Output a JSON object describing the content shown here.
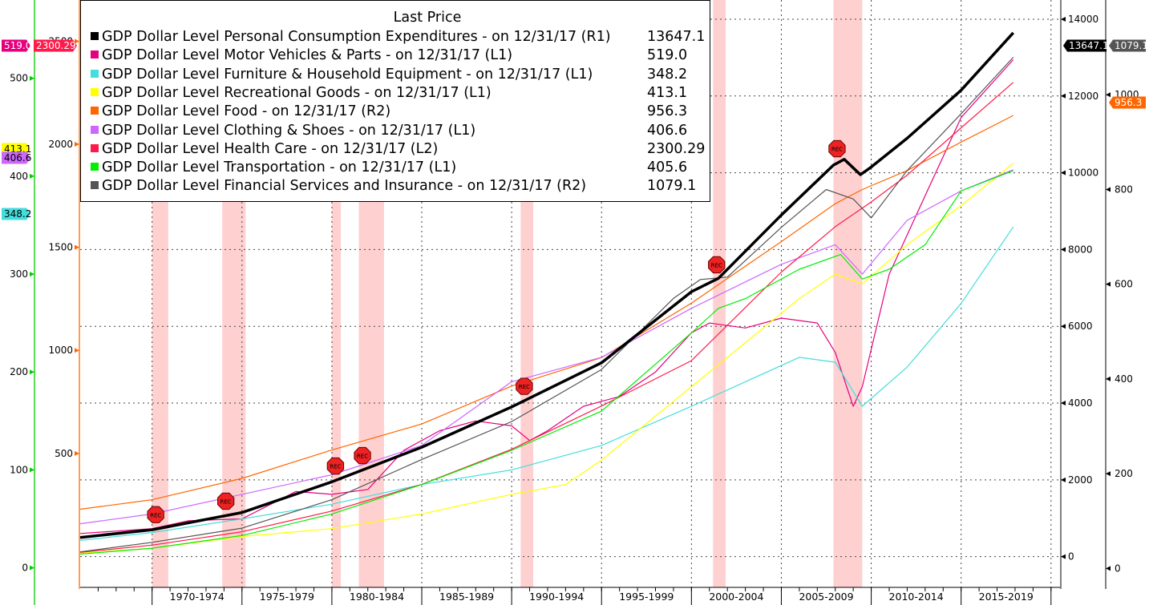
{
  "chart_data": {
    "type": "line",
    "legend_title": "Last Price",
    "legend_position": "top-left",
    "x_range": [
      1966.0,
      2020.5
    ],
    "x_tick_labels": [
      "1970-1974",
      "1975-1979",
      "1980-1984",
      "1985-1989",
      "1990-1994",
      "1995-1999",
      "2000-2004",
      "2005-2009",
      "2010-2014",
      "2015-2019"
    ],
    "axes": {
      "L1": {
        "range": [
          -20,
          580
        ],
        "ticks": [
          0,
          100,
          200,
          300,
          400,
          500
        ],
        "tick_labels": [
          "0",
          "100",
          "200",
          "300",
          "400",
          "500"
        ],
        "color": "#00cc00",
        "side": "left-outer"
      },
      "L2": {
        "range": [
          -150,
          2700
        ],
        "ticks": [
          500,
          1000,
          1500,
          2000,
          2500
        ],
        "tick_labels": [
          "500",
          "1000",
          "1500",
          "2000",
          "2500"
        ],
        "color": "#ff6600",
        "side": "left-inner"
      },
      "R1": {
        "range": [
          -800,
          14500
        ],
        "ticks": [
          0,
          2000,
          4000,
          6000,
          8000,
          10000,
          12000,
          14000
        ],
        "tick_labels": [
          "0",
          "2000",
          "4000",
          "6000",
          "8000",
          "10000",
          "12000",
          "14000"
        ],
        "side": "right-inner"
      },
      "R2": {
        "range": [
          -40,
          1200
        ],
        "ticks": [
          0,
          200,
          400,
          600,
          800,
          1000
        ],
        "tick_labels": [
          "0",
          "200",
          "400",
          "600",
          "800",
          "1000"
        ],
        "side": "right-outer"
      }
    },
    "recessions": [
      {
        "start": 1970.0,
        "end": 1970.9,
        "label": "REC"
      },
      {
        "start": 1973.9,
        "end": 1975.2,
        "label": "REC"
      },
      {
        "start": 1980.0,
        "end": 1980.5,
        "label": "REC"
      },
      {
        "start": 1981.5,
        "end": 1982.9,
        "label": "REC"
      },
      {
        "start": 1990.5,
        "end": 1991.2,
        "label": "REC"
      },
      {
        "start": 2001.2,
        "end": 2001.9,
        "label": "REC"
      },
      {
        "start": 2007.9,
        "end": 2009.5,
        "label": "REC"
      }
    ],
    "last_price_tags": [
      {
        "text": "519.0",
        "axis": "L1",
        "value": 519.0,
        "color": "#e6007e"
      },
      {
        "text": "2300.29",
        "axis": "L2",
        "value": 2300.29,
        "color": "#ff1a4a"
      },
      {
        "text": "413.1",
        "axis": "L1",
        "value": 413.1,
        "color": "#ffff00"
      },
      {
        "text": "406.6",
        "axis": "L1",
        "value": 406.6,
        "color": "#cc66ff"
      },
      {
        "text": "348.2",
        "axis": "L1",
        "value": 348.2,
        "color": "#44dddd"
      },
      {
        "text": "13647.1",
        "axis": "R1",
        "value": 13647.1,
        "color": "#000000"
      },
      {
        "text": "1079.1",
        "axis": "R2",
        "value": 1079.1,
        "color": "#555555"
      },
      {
        "text": "956.3",
        "axis": "R2",
        "value": 956.3,
        "color": "#ff6600"
      }
    ],
    "series": [
      {
        "name": "GDP Dollar Level Personal Consumption Expenditures -  on 12/31/17  (R1)",
        "last": "13647.1",
        "axis": "R1",
        "color": "#000000",
        "width": 3.5,
        "x": [
          1966,
          1970,
          1975,
          1980,
          1985,
          1990,
          1995,
          2000,
          2001.5,
          2005,
          2007.9,
          2008.5,
          2009.4,
          2010,
          2012,
          2015,
          2017.9
        ],
        "values": [
          500,
          700,
          1150,
          1950,
          2850,
          3900,
          5050,
          6900,
          7250,
          8900,
          10200,
          10350,
          9950,
          10150,
          10900,
          12150,
          13647.1
        ]
      },
      {
        "name": "GDP Dollar Level Motor Vehicles & Parts -  on 12/31/17  (L1)",
        "last": "519.0",
        "axis": "L1",
        "color": "#e6007e",
        "width": 1.2,
        "x": [
          1966,
          1970,
          1972,
          1975,
          1978,
          1980,
          1982,
          1984,
          1986,
          1988,
          1990,
          1991,
          1992,
          1994,
          1996,
          1998,
          2000,
          2001,
          2003,
          2005,
          2007,
          2008,
          2009,
          2009.5,
          2011,
          2013,
          2015,
          2017.9
        ],
        "values": [
          35,
          40,
          48,
          50,
          78,
          75,
          80,
          120,
          140,
          150,
          145,
          130,
          140,
          165,
          175,
          200,
          240,
          250,
          245,
          255,
          250,
          220,
          165,
          185,
          300,
          380,
          460,
          519.0
        ]
      },
      {
        "name": "GDP Dollar Level Furniture & Household Equipment -  on 12/31/17  (L1)",
        "last": "348.2",
        "axis": "L1",
        "color": "#44dddd",
        "width": 1.2,
        "x": [
          1966,
          1970,
          1975,
          1980,
          1985,
          1990,
          1995,
          2000,
          2003,
          2006,
          2008,
          2009.5,
          2012,
          2015,
          2017.9
        ],
        "values": [
          28,
          36,
          50,
          65,
          85,
          100,
          125,
          165,
          190,
          215,
          210,
          165,
          205,
          270,
          348.2
        ]
      },
      {
        "name": "GDP Dollar Level Recreational Goods -  on 12/31/17  (L1)",
        "last": "413.1",
        "axis": "L1",
        "color": "#ffff00",
        "width": 1.2,
        "x": [
          1966,
          1970,
          1975,
          1980,
          1985,
          1990,
          1993,
          1995,
          2000,
          2003,
          2006,
          2008,
          2009.5,
          2012,
          2015,
          2017.9
        ],
        "values": [
          15,
          20,
          32,
          40,
          55,
          75,
          85,
          110,
          185,
          230,
          275,
          300,
          290,
          330,
          370,
          413.1
        ]
      },
      {
        "name": "GDP Dollar Level Food -  on 12/31/17  (R2)",
        "last": "956.3",
        "axis": "R2",
        "color": "#ff6600",
        "width": 1.2,
        "x": [
          1966,
          1970,
          1975,
          1980,
          1985,
          1990,
          1995,
          2000,
          2005,
          2008,
          2009.5,
          2012,
          2015,
          2017.9
        ],
        "values": [
          125,
          145,
          190,
          250,
          305,
          385,
          445,
          560,
          690,
          770,
          800,
          840,
          900,
          956.3
        ]
      },
      {
        "name": "GDP Dollar Level Clothing & Shoes -  on 12/31/17  (L1)",
        "last": "406.6",
        "axis": "L1",
        "color": "#cc66ff",
        "width": 1.2,
        "x": [
          1966,
          1970,
          1975,
          1980,
          1985,
          1990,
          1995,
          2000,
          2005,
          2008,
          2009.5,
          2012,
          2015,
          2017.9
        ],
        "values": [
          45,
          55,
          75,
          95,
          125,
          190,
          215,
          265,
          310,
          330,
          300,
          355,
          385,
          406.6
        ]
      },
      {
        "name": "GDP Dollar Level Health Care -  on 12/31/17  (L2)",
        "last": "2300.29",
        "axis": "L2",
        "color": "#ff1a4a",
        "width": 1.2,
        "x": [
          1966,
          1970,
          1975,
          1980,
          1985,
          1990,
          1995,
          2000,
          2005,
          2008,
          2010,
          2012,
          2015,
          2017.9
        ],
        "values": [
          20,
          55,
          120,
          220,
          350,
          520,
          730,
          950,
          1380,
          1600,
          1720,
          1850,
          2080,
          2300.29
        ]
      },
      {
        "name": "GDP Dollar Level Transportation -  on 12/31/17  (L1)",
        "last": "405.6",
        "axis": "L1",
        "color": "#00ee00",
        "width": 1.2,
        "x": [
          1966,
          1970,
          1975,
          1980,
          1985,
          1990,
          1995,
          2000,
          2001.5,
          2003,
          2006,
          2008.3,
          2009.5,
          2011,
          2013,
          2015,
          2017.9
        ],
        "values": [
          14,
          20,
          33,
          55,
          85,
          120,
          160,
          240,
          265,
          275,
          305,
          320,
          295,
          305,
          330,
          385,
          405.6
        ]
      },
      {
        "name": "GDP Dollar Level Financial Services and Insurance -  on 12/31/17  (R2)",
        "last": "1079.1",
        "axis": "R2",
        "color": "#555555",
        "width": 1.2,
        "x": [
          1966,
          1970,
          1975,
          1980,
          1985,
          1990,
          1995,
          1999,
          2000.5,
          2002,
          2005,
          2007.5,
          2009,
          2010,
          2012,
          2015,
          2017.9
        ],
        "values": [
          35,
          55,
          85,
          145,
          230,
          310,
          420,
          570,
          610,
          615,
          720,
          800,
          780,
          740,
          840,
          960,
          1079.1
        ]
      }
    ]
  }
}
